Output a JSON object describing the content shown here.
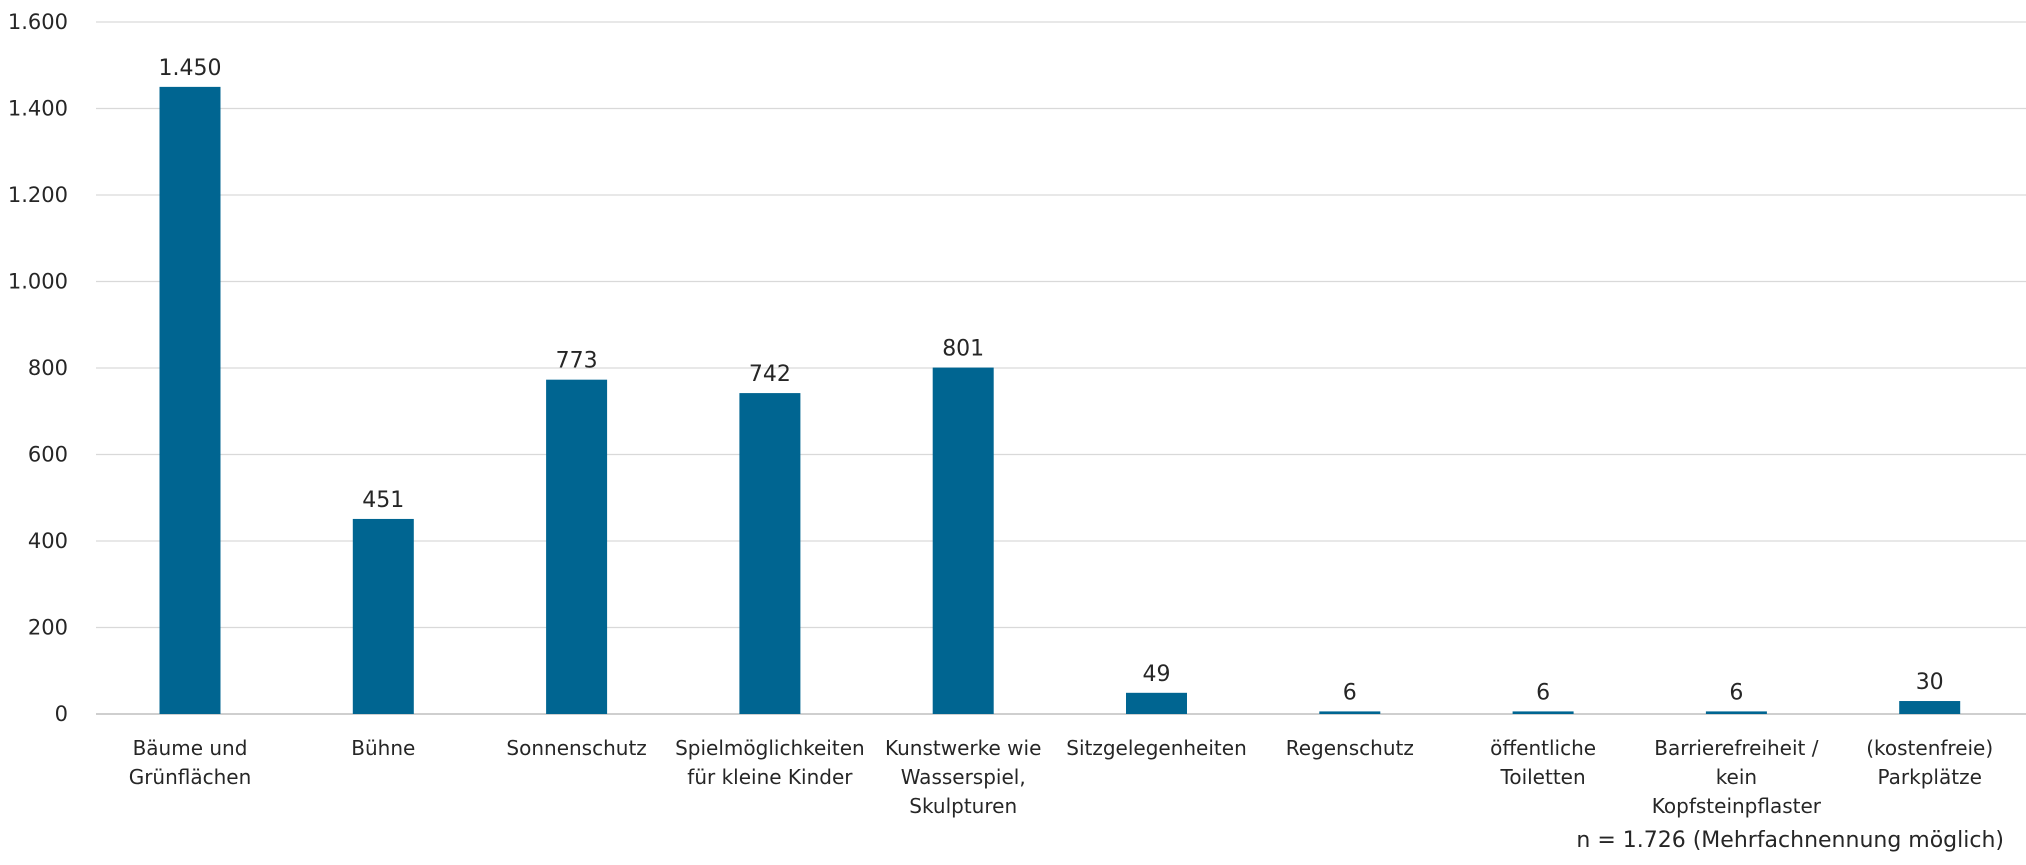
{
  "chart_data": {
    "type": "bar",
    "categories": [
      [
        "Bäume und",
        "Grünflächen"
      ],
      [
        "Bühne"
      ],
      [
        "Sonnenschutz"
      ],
      [
        "Spielmöglichkeiten",
        "für kleine Kinder"
      ],
      [
        "Kunstwerke wie",
        "Wasserspiel,",
        "Skulpturen"
      ],
      [
        "Sitzgelegenheiten"
      ],
      [
        "Regenschutz"
      ],
      [
        "öffentliche",
        "Toiletten"
      ],
      [
        "Barrierefreiheit /",
        "kein",
        "Kopfsteinpflaster"
      ],
      [
        "(kostenfreie)",
        "Parkplätze"
      ]
    ],
    "values": [
      1450,
      451,
      773,
      742,
      801,
      49,
      6,
      6,
      6,
      30
    ],
    "data_labels": [
      "1.450",
      "451",
      "773",
      "742",
      "801",
      "49",
      "6",
      "6",
      "6",
      "30"
    ],
    "y_ticks": [
      0,
      200,
      400,
      600,
      800,
      1000,
      1200,
      1400,
      1600
    ],
    "y_tick_labels": [
      "0",
      "200",
      "400",
      "600",
      "800",
      "1.000",
      "1.200",
      "1.400",
      "1.600"
    ],
    "ylim": [
      0,
      1600
    ],
    "grid": true,
    "bar_color": "#006591",
    "grid_color": "#d9d9d9",
    "axis_color": "#bfbfbf",
    "note": "n = 1.726 (Mehrfachnennung möglich)"
  }
}
